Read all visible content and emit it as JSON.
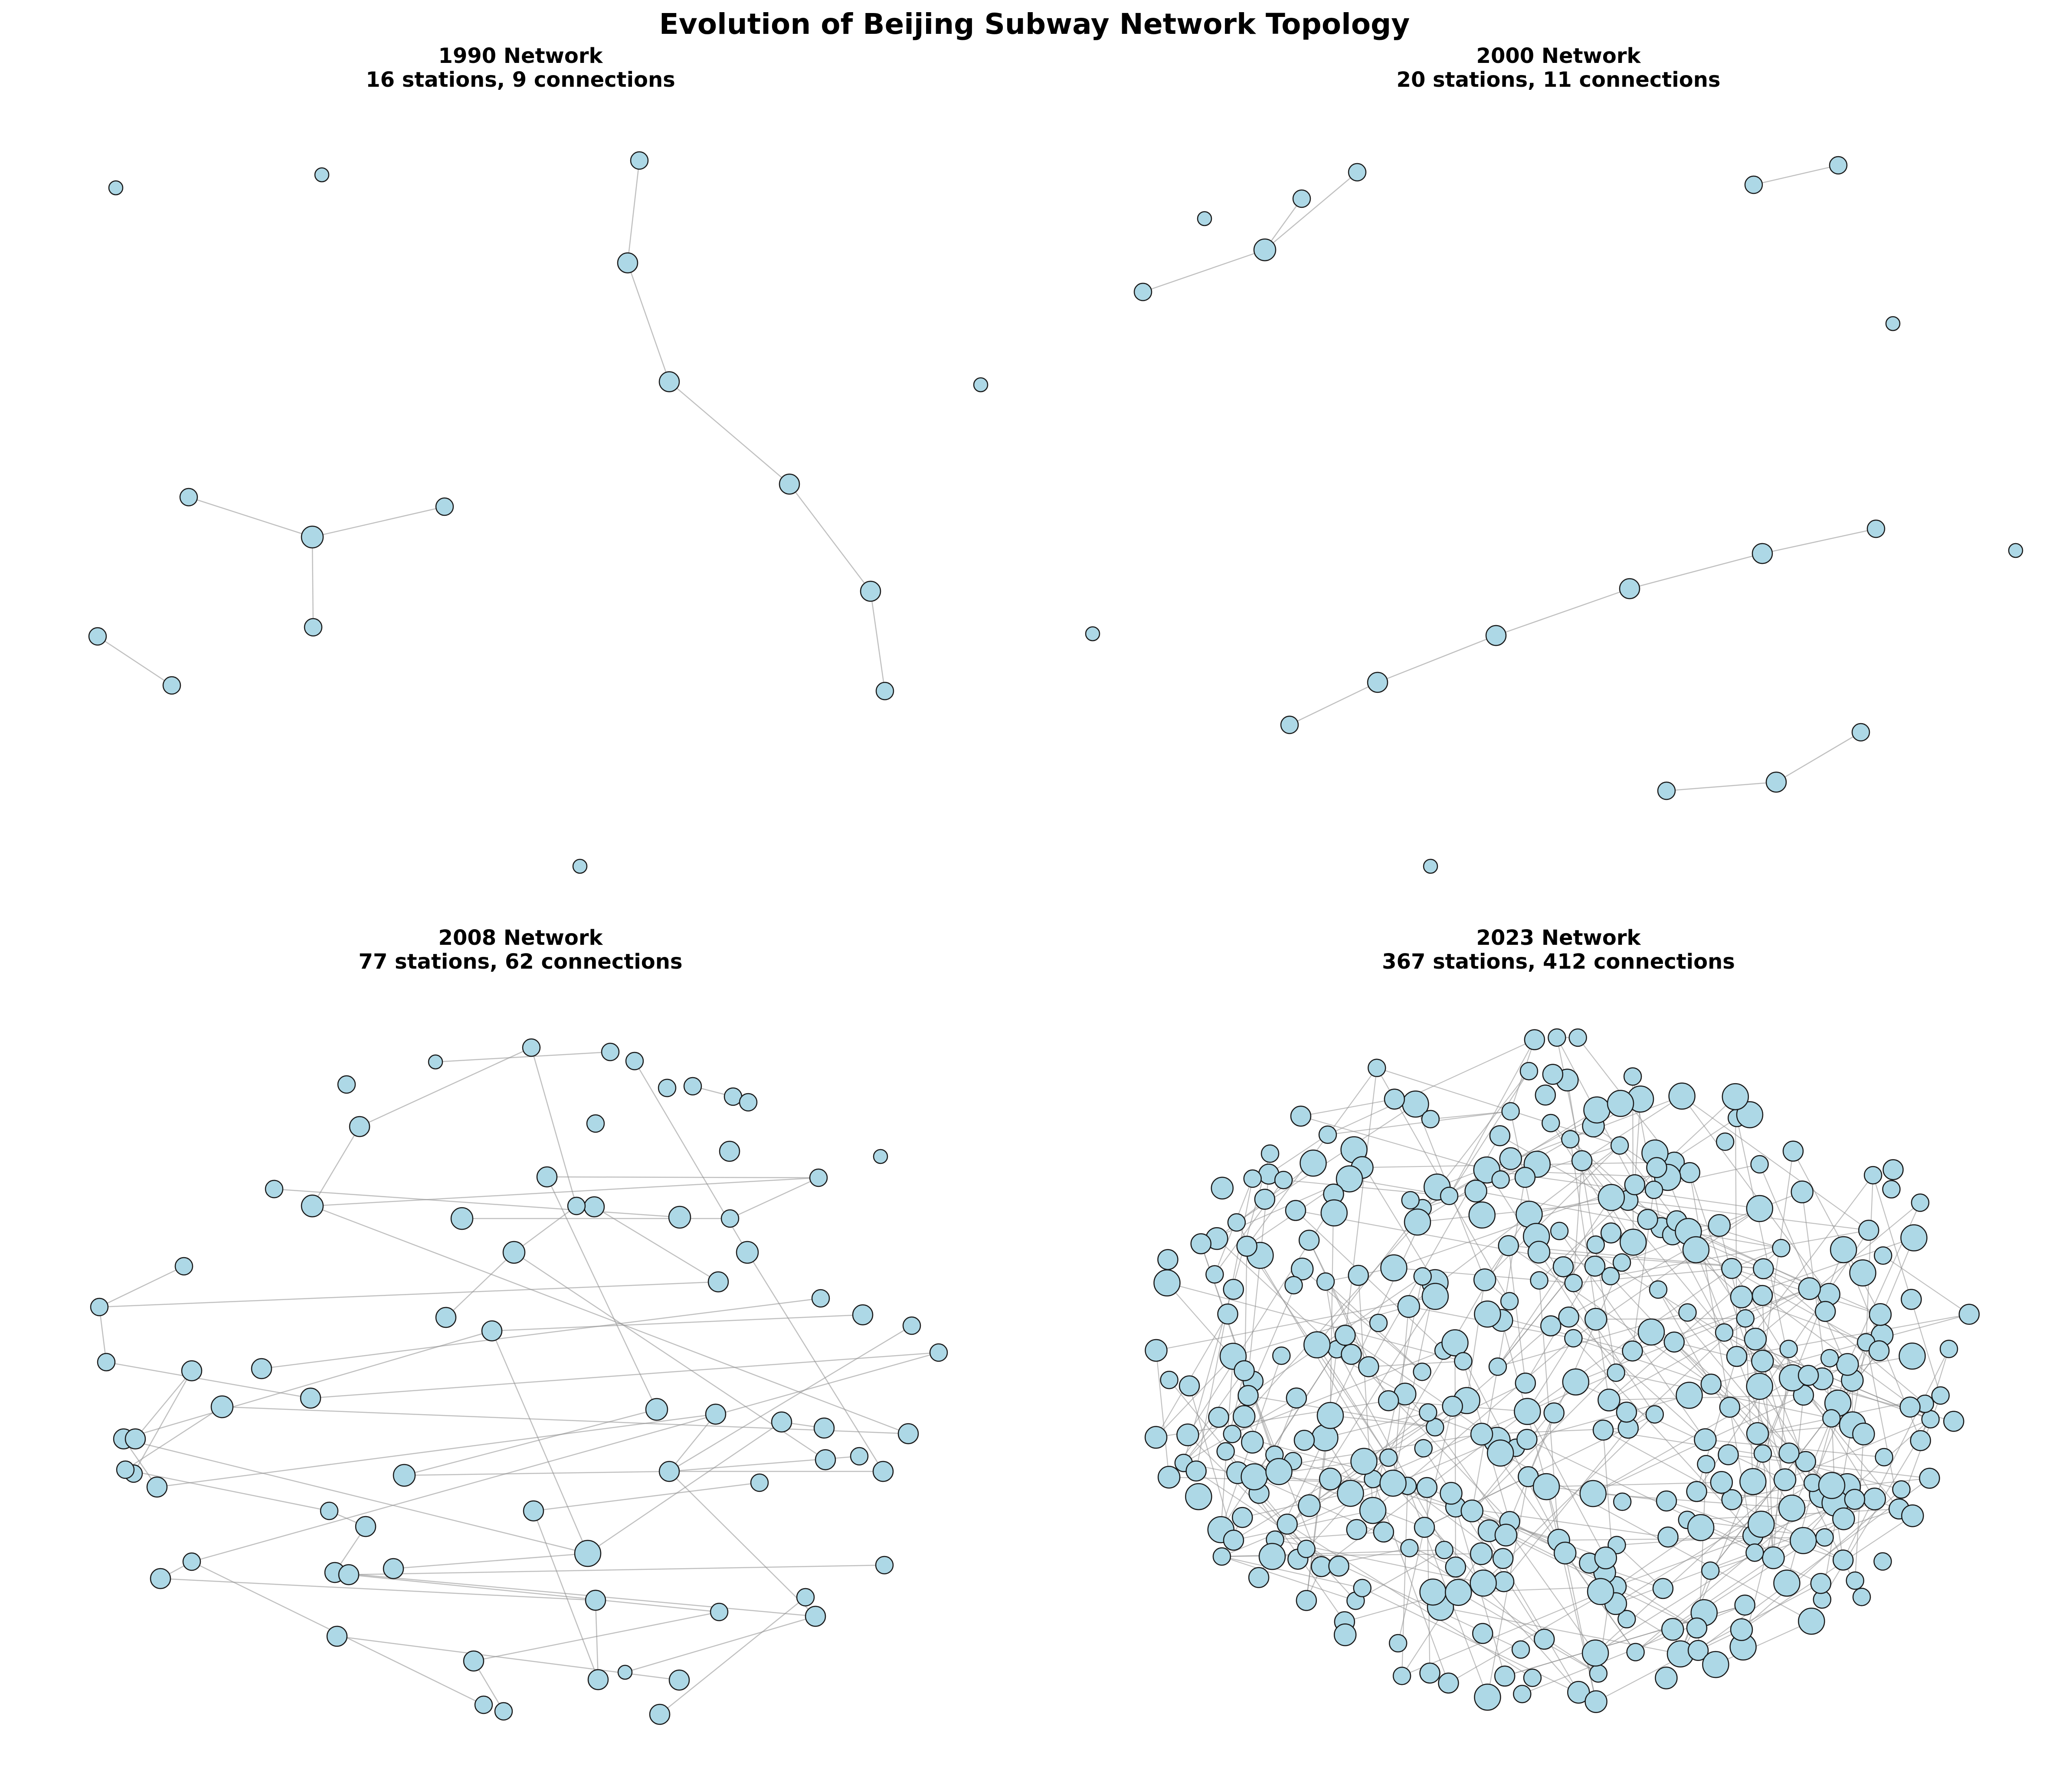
{
  "figure": {
    "title": "Evolution of Beijing Subway Network Topology"
  },
  "panels": [
    {
      "name": "1990",
      "heading": "1990 Network",
      "subheading": "16 stations, 9 connections",
      "stations": 16,
      "connections": 9
    },
    {
      "name": "2000",
      "heading": "2000 Network",
      "subheading": "20 stations, 11 connections",
      "stations": 20,
      "connections": 11
    },
    {
      "name": "2008",
      "heading": "2008 Network",
      "subheading": "77 stations, 62 connections",
      "stations": 77,
      "connections": 62
    },
    {
      "name": "2023",
      "heading": "2023 Network",
      "subheading": "367 stations, 412 connections",
      "stations": 367,
      "connections": 412
    }
  ],
  "style": {
    "node_fill": "#add8e6",
    "node_stroke": "#1a1a1a",
    "edge_color": "#8c8c8c",
    "background": "#ffffff"
  }
}
